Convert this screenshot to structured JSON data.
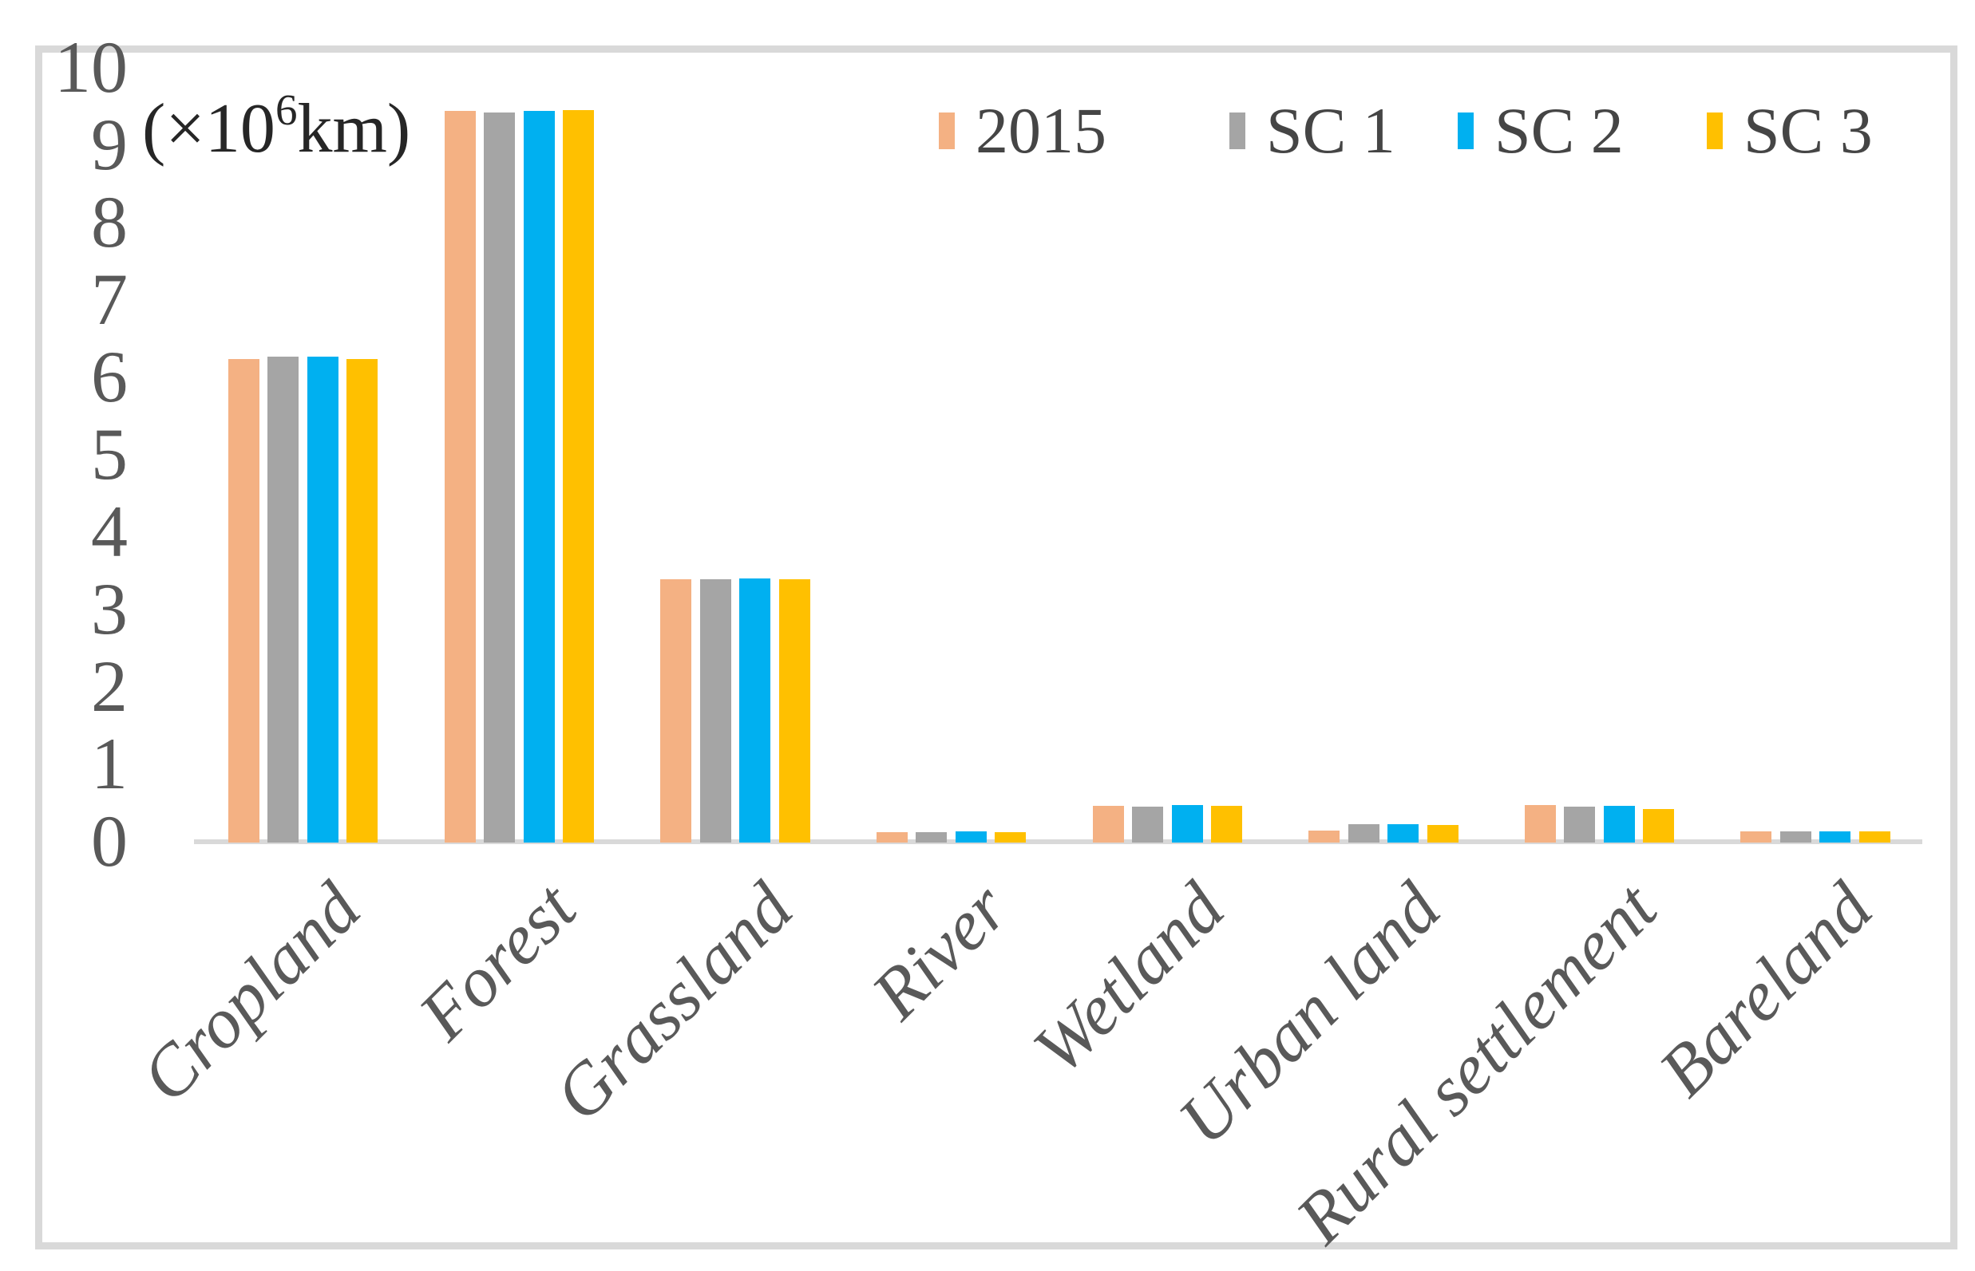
{
  "chart_data": {
    "type": "bar",
    "title": "",
    "unit_label": {
      "prefix": "(×10",
      "superscript": "6",
      "suffix": "km)"
    },
    "categories": [
      "Cropland",
      "Forest",
      "Grassland",
      "River",
      "Wetland",
      "Urban land",
      "Rural settlement",
      "Bareland"
    ],
    "series": [
      {
        "name": "2015",
        "color": "#F4B183",
        "values": [
          6.25,
          9.45,
          3.4,
          0.13,
          0.47,
          0.15,
          0.48,
          0.14
        ]
      },
      {
        "name": "SC 1",
        "color": "#A5A5A5",
        "values": [
          6.28,
          9.43,
          3.4,
          0.13,
          0.46,
          0.24,
          0.46,
          0.14
        ]
      },
      {
        "name": "SC 2",
        "color": "#00B0F0",
        "values": [
          6.28,
          9.45,
          3.41,
          0.14,
          0.48,
          0.24,
          0.47,
          0.14
        ]
      },
      {
        "name": "SC 3",
        "color": "#FFC000",
        "values": [
          6.25,
          9.46,
          3.4,
          0.13,
          0.47,
          0.23,
          0.43,
          0.14
        ]
      }
    ],
    "y_axis": {
      "min": 0,
      "max": 10,
      "step": 1
    },
    "legend_position": "top-right",
    "grid": false,
    "colors": {
      "axis_line": "#D9D9D9",
      "frame_border": "#D9D9D9",
      "tick_text": "#595959",
      "category_text": "#595959",
      "legend_text": "#454545",
      "background": "#FFFFFF"
    }
  }
}
